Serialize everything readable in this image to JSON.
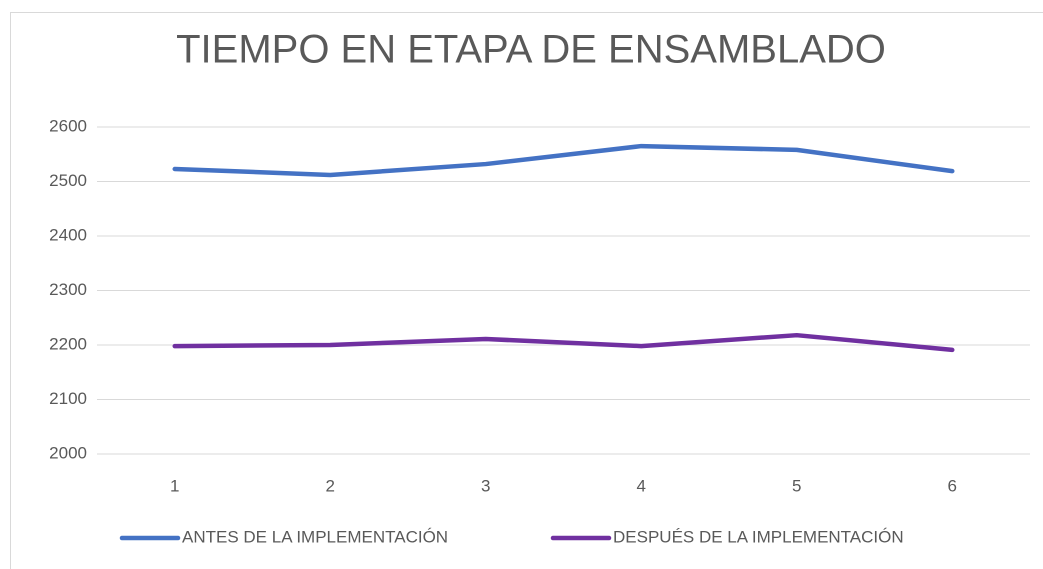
{
  "chart_data": {
    "type": "line",
    "title": "TIEMPO EN ETAPA DE ENSAMBLADO",
    "categories": [
      "1",
      "2",
      "3",
      "4",
      "5",
      "6"
    ],
    "series": [
      {
        "name": "ANTES DE LA IMPLEMENTACIÓN",
        "color": "#4472c4",
        "values": [
          2523,
          2512,
          2532,
          2565,
          2558,
          2519
        ]
      },
      {
        "name": "DESPUÉS DE LA IMPLEMENTACIÓN",
        "color": "#7030a0",
        "values": [
          2198,
          2200,
          2211,
          2198,
          2218,
          2191
        ]
      }
    ],
    "ylim": [
      2000,
      2600
    ],
    "yticks": [
      2000,
      2100,
      2200,
      2300,
      2400,
      2500,
      2600
    ],
    "grid": true,
    "legend": "bottom"
  }
}
